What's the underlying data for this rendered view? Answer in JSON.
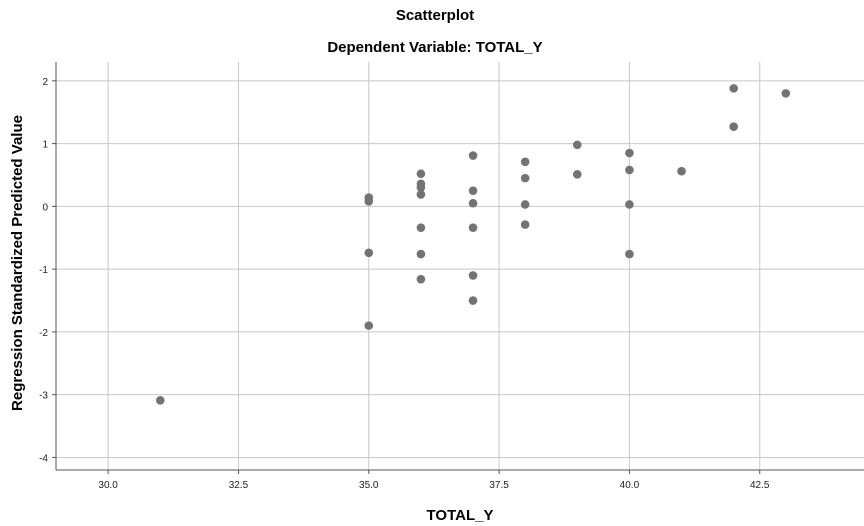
{
  "chart_data": {
    "type": "scatter",
    "title": "Scatterplot",
    "subtitle": "Dependent Variable: TOTAL_Y",
    "xlabel": "TOTAL_Y",
    "ylabel": "Regression Standardized Predicted Value",
    "xlim": [
      29.0,
      44.5
    ],
    "ylim": [
      -4.2,
      2.3
    ],
    "x_ticks": [
      30.0,
      32.5,
      35.0,
      37.5,
      40.0,
      42.5
    ],
    "x_tick_labels": [
      "30.0",
      "32.5",
      "35.0",
      "37.5",
      "40.0",
      "42.5"
    ],
    "y_ticks": [
      2,
      1,
      0,
      -1,
      -2,
      -3,
      -4
    ],
    "y_tick_labels": [
      "2",
      "1",
      "0",
      "-1",
      "-2",
      "-3",
      "-4"
    ],
    "grid": true,
    "point_color": "#737373",
    "grid_color": "#c8c8c8",
    "points": [
      {
        "x": 31,
        "y": -3.09
      },
      {
        "x": 35,
        "y": 0.14
      },
      {
        "x": 35,
        "y": 0.08
      },
      {
        "x": 35,
        "y": -0.74
      },
      {
        "x": 35,
        "y": -1.9
      },
      {
        "x": 36,
        "y": 0.52
      },
      {
        "x": 36,
        "y": 0.36
      },
      {
        "x": 36,
        "y": 0.3
      },
      {
        "x": 36,
        "y": 0.19
      },
      {
        "x": 36,
        "y": -0.34
      },
      {
        "x": 36,
        "y": -0.76
      },
      {
        "x": 36,
        "y": -1.16
      },
      {
        "x": 37,
        "y": 0.81
      },
      {
        "x": 37,
        "y": 0.25
      },
      {
        "x": 37,
        "y": 0.05
      },
      {
        "x": 37,
        "y": -0.34
      },
      {
        "x": 37,
        "y": -1.1
      },
      {
        "x": 37,
        "y": -1.5
      },
      {
        "x": 38,
        "y": 0.71
      },
      {
        "x": 38,
        "y": 0.45
      },
      {
        "x": 38,
        "y": 0.03
      },
      {
        "x": 38,
        "y": -0.29
      },
      {
        "x": 39,
        "y": 0.98
      },
      {
        "x": 39,
        "y": 0.51
      },
      {
        "x": 40,
        "y": 0.85
      },
      {
        "x": 40,
        "y": 0.58
      },
      {
        "x": 40,
        "y": 0.03
      },
      {
        "x": 40,
        "y": -0.76
      },
      {
        "x": 41,
        "y": 0.56
      },
      {
        "x": 42,
        "y": 1.88
      },
      {
        "x": 42,
        "y": 1.27
      },
      {
        "x": 43,
        "y": 1.8
      }
    ]
  }
}
